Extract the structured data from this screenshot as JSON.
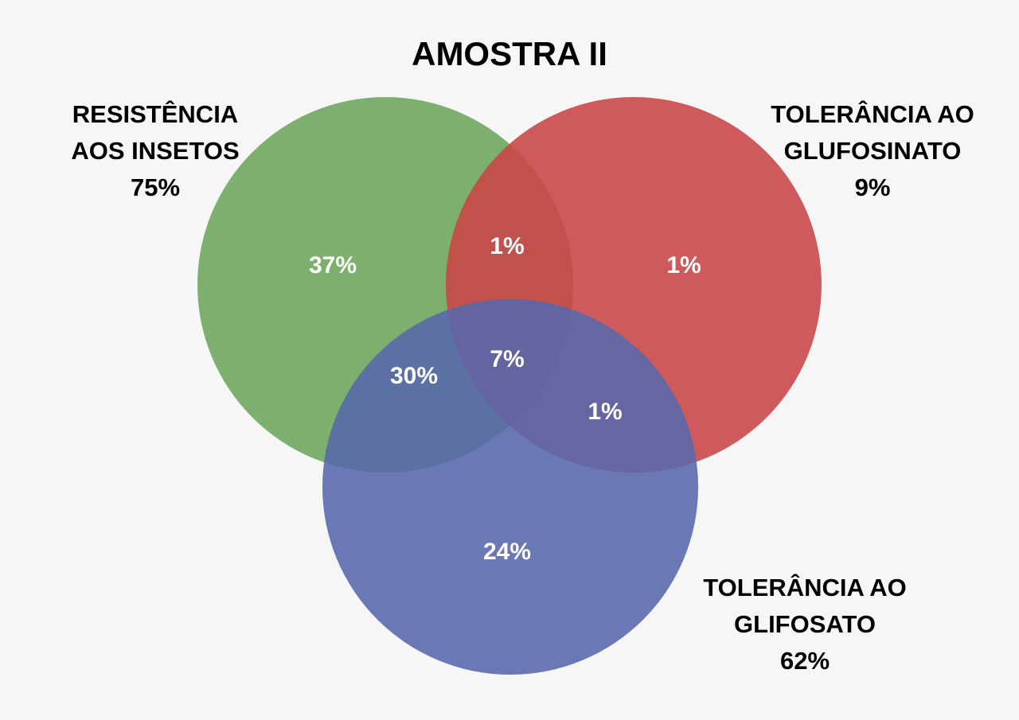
{
  "title": "AMOSTRA II",
  "colors": {
    "background": "#f6f6f6",
    "insetos": "#70a85f",
    "glufosinato": "#c94447",
    "glifosato": "#5668ac"
  },
  "sets": {
    "insetos": {
      "line1": "RESISTÊNCIA",
      "line2": "AOS INSETOS",
      "total": "75%"
    },
    "glufosinato": {
      "line1": "TOLERÂNCIA AO",
      "line2": "GLUFOSINATO",
      "total": "9%"
    },
    "glifosato": {
      "line1": "TOLERÂNCIA AO",
      "line2": "GLIFOSATO",
      "total": "62%"
    }
  },
  "regions": {
    "insetos_only": "37%",
    "glufosinato_only": "1%",
    "glifosato_only": "24%",
    "insetos_glufosinato": "1%",
    "insetos_glifosato": "30%",
    "glufosinato_glifosato": "1%",
    "all_three": "7%"
  }
}
